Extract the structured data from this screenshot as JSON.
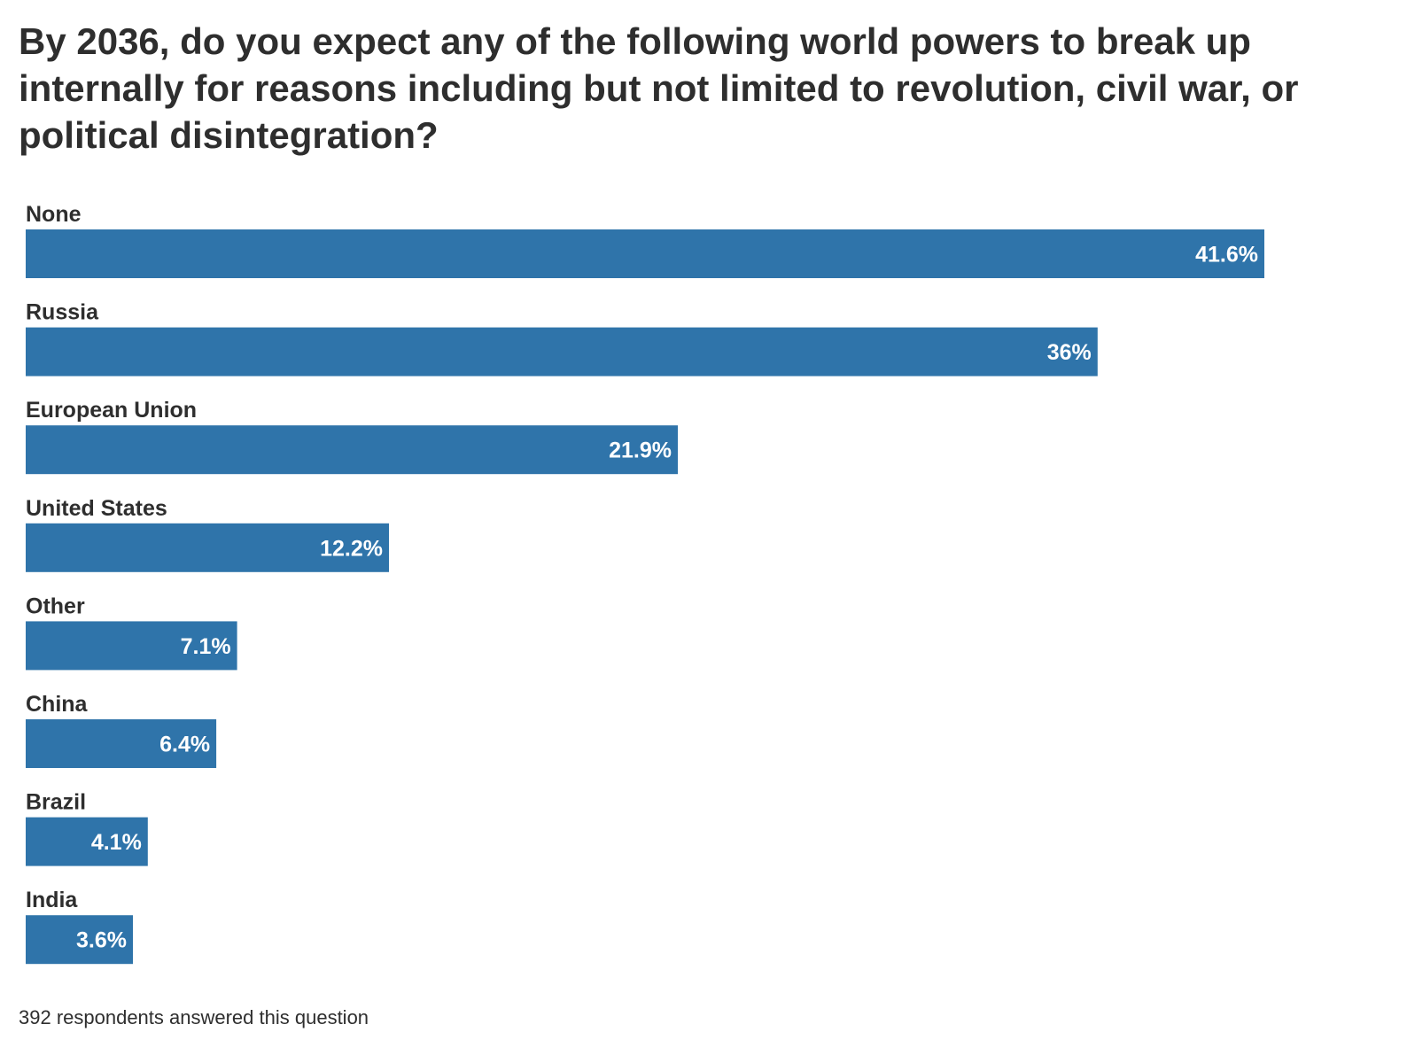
{
  "chart_data": {
    "type": "bar",
    "orientation": "horizontal",
    "title": "By 2036, do you expect any of the following world powers to break up internally for reasons including but not limited to revolution, civil war, or political disintegration?",
    "categories": [
      "None",
      "Russia",
      "European Union",
      "United States",
      "Other",
      "China",
      "Brazil",
      "India"
    ],
    "values": [
      41.6,
      36,
      21.9,
      12.2,
      7.1,
      6.4,
      4.1,
      3.6
    ],
    "value_labels": [
      "41.6%",
      "36%",
      "21.9%",
      "12.2%",
      "7.1%",
      "6.4%",
      "4.1%",
      "3.6%"
    ],
    "unit": "%",
    "xlim": [
      0,
      41.6
    ],
    "bar_color": "#2f74aa",
    "label_color": "#ffffff",
    "grid": false,
    "legend": "none",
    "footnote": "392 respondents answered this question"
  }
}
